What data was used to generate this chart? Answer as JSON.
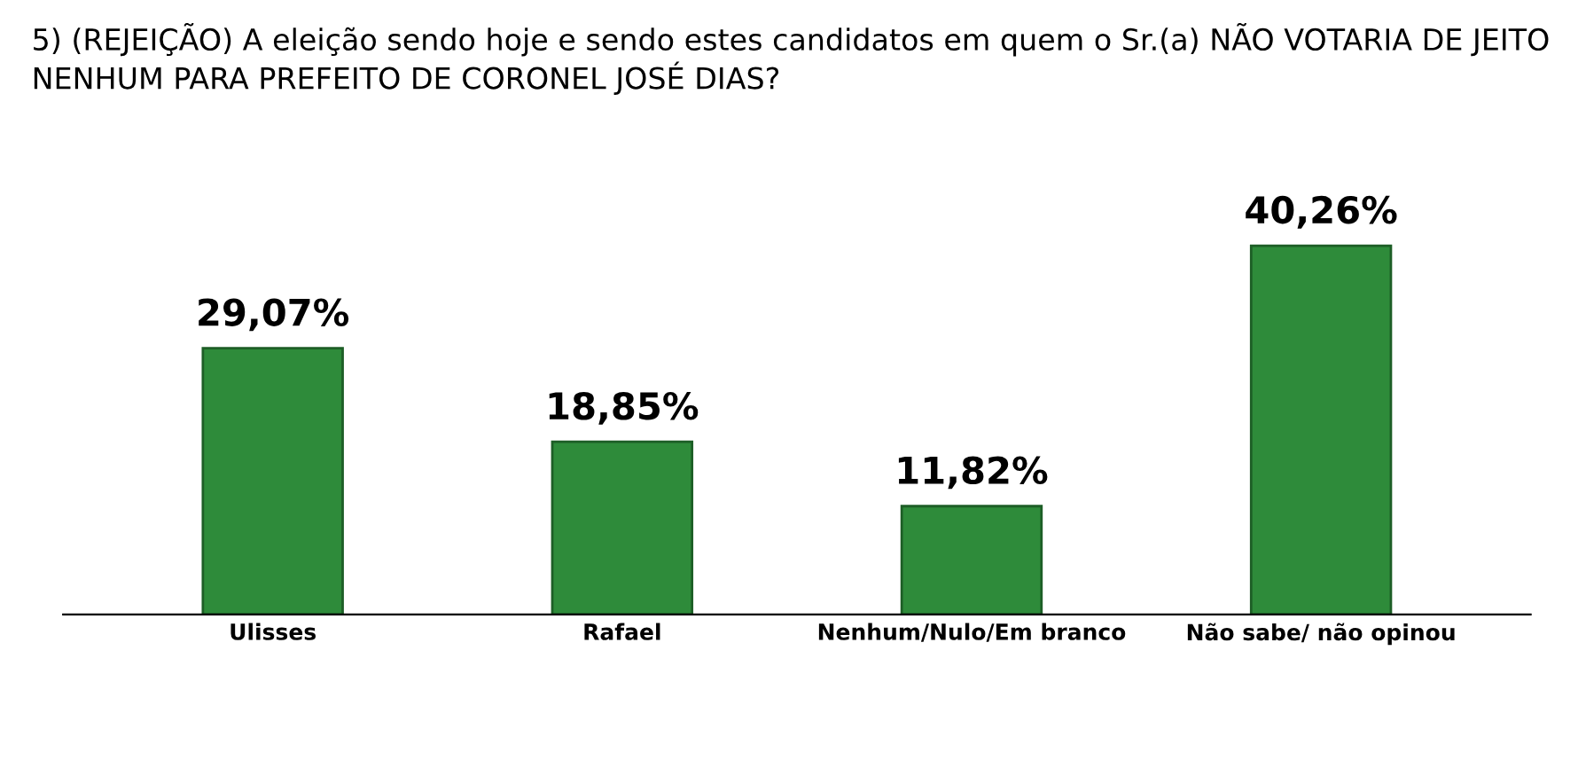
{
  "chart_data": {
    "type": "bar",
    "title": "5) (REJEIÇÃO) A eleição sendo hoje e sendo estes candidatos em quem o Sr.(a) NÃO VOTARIA DE JEITO NENHUM PARA PREFEITO DE CORONEL JOSÉ DIAS?",
    "categories": [
      "Ulisses",
      "Rafael",
      "Nenhum/Nulo/Em branco",
      "Não sabe/ não opinou"
    ],
    "values": [
      29.07,
      18.85,
      11.82,
      40.26
    ],
    "value_labels": [
      "29,07%",
      "18,85%",
      "11,82%",
      "40,26%"
    ],
    "color": "#2e8b3a",
    "grid": false,
    "legend": false
  }
}
